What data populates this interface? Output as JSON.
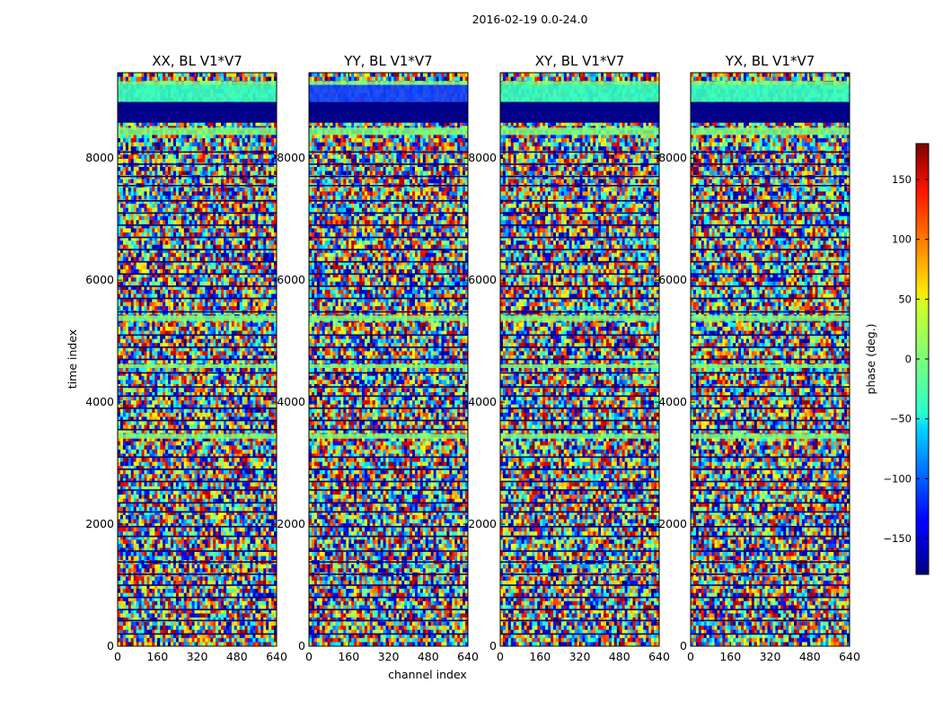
{
  "suptitle": "2016-02-19 0.0-24.0",
  "chart_data": {
    "type": "heatmap",
    "panels": [
      {
        "title": "XX, BL V1*V7"
      },
      {
        "title": "YY, BL V1*V7"
      },
      {
        "title": "XY, BL V1*V7"
      },
      {
        "title": "YX, BL V1*V7"
      }
    ],
    "xlabel": "channel index",
    "ylabel": "time index",
    "xlim": [
      0,
      640
    ],
    "ylim": [
      0,
      9400
    ],
    "xticks": [
      0,
      160,
      320,
      480,
      640
    ],
    "yticks": [
      0,
      2000,
      4000,
      6000,
      8000
    ],
    "colorbar": {
      "label": "phase (deg.)",
      "range": [
        -180,
        180
      ],
      "ticks": [
        150,
        100,
        50,
        0,
        -50,
        -100,
        -150
      ],
      "tick_labels": [
        "150",
        "100",
        "50",
        "0",
        "−50",
        "−100",
        "−150"
      ],
      "colormap": "jet"
    },
    "grid": false
  }
}
